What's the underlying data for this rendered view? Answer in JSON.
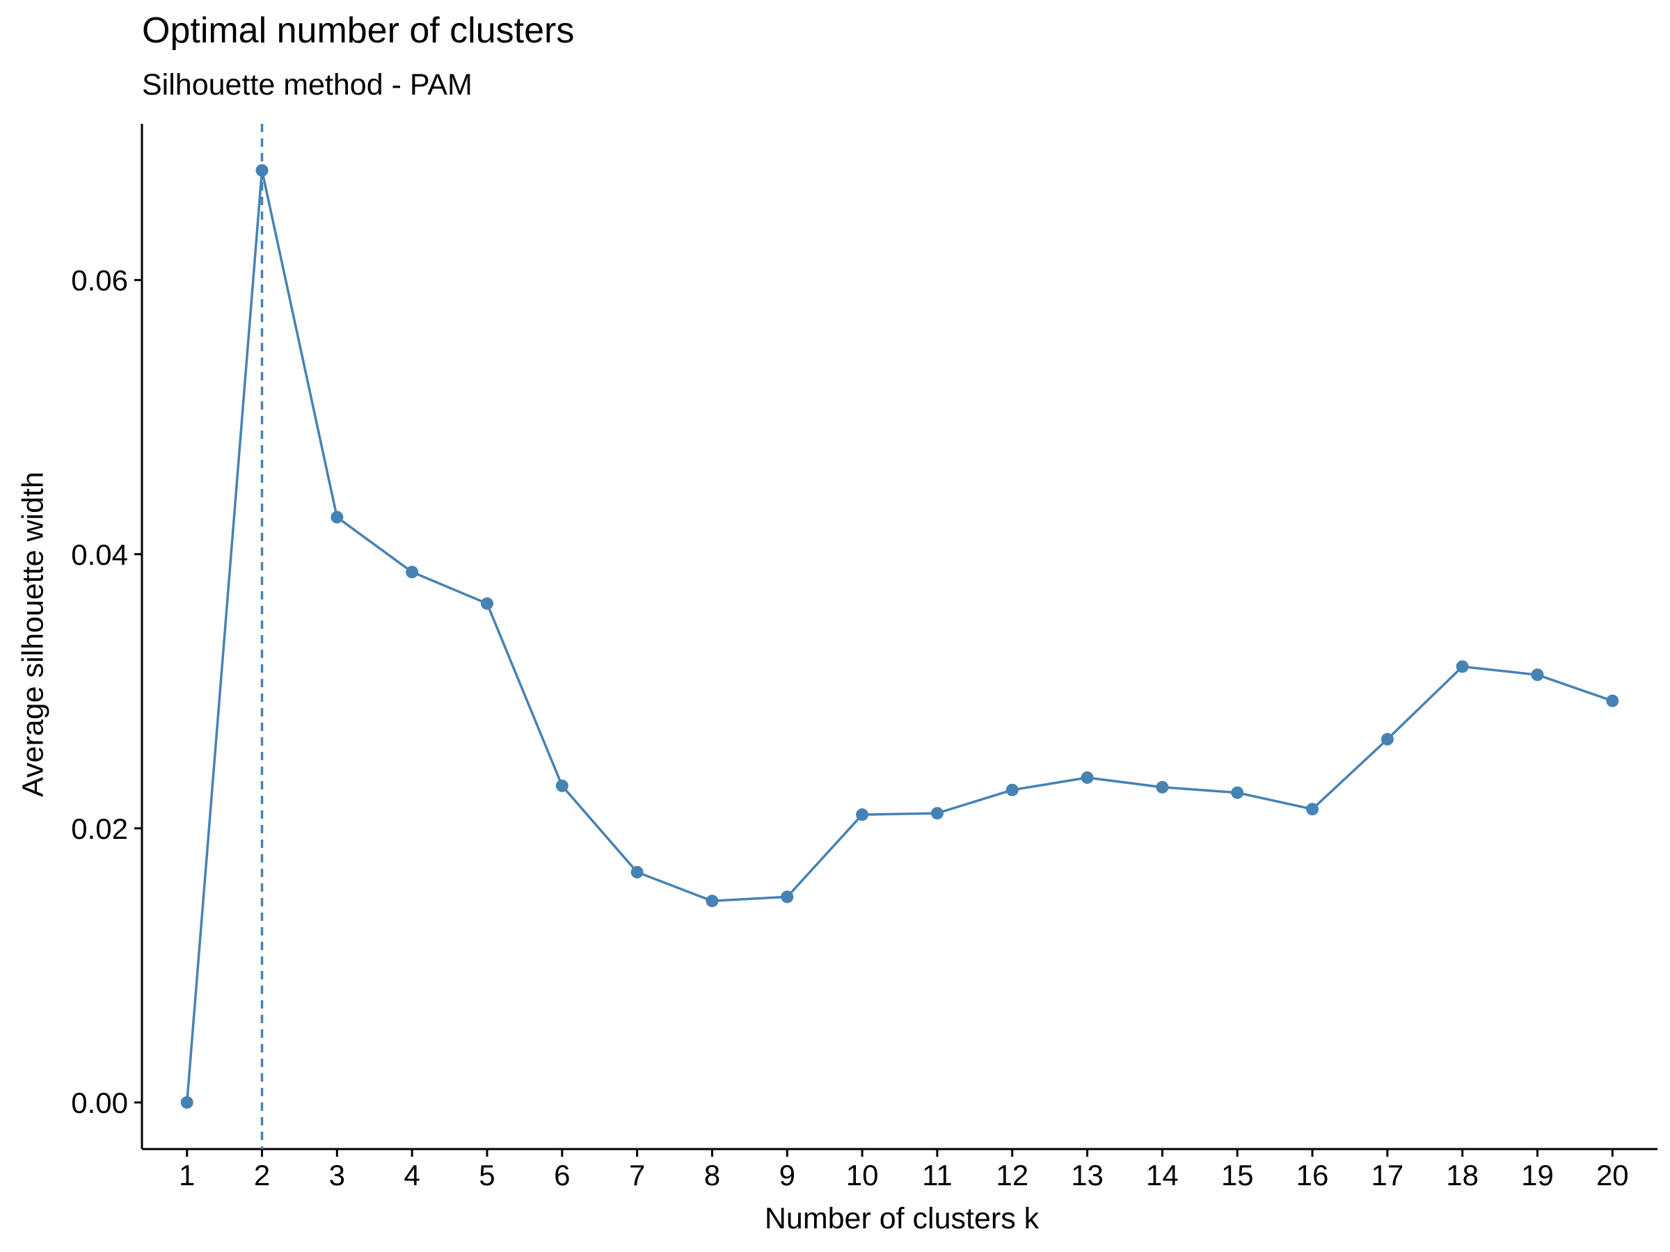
{
  "chart_data": {
    "type": "line",
    "title": "Optimal number of clusters",
    "subtitle": "Silhouette method - PAM",
    "xlabel": "Number of clusters k",
    "ylabel": "Average silhouette width",
    "x": [
      1,
      2,
      3,
      4,
      5,
      6,
      7,
      8,
      9,
      10,
      11,
      12,
      13,
      14,
      15,
      16,
      17,
      18,
      19,
      20
    ],
    "series": [
      {
        "values": [
          0.0,
          0.068,
          0.0427,
          0.0387,
          0.0364,
          0.0231,
          0.0168,
          0.0147,
          0.015,
          0.021,
          0.0211,
          0.0228,
          0.0237,
          0.023,
          0.0226,
          0.0214,
          0.0265,
          0.0318,
          0.0312,
          0.0293
        ]
      }
    ],
    "vline": {
      "x": 2,
      "style": "dashed"
    },
    "x_ticks": [
      "1",
      "2",
      "3",
      "4",
      "5",
      "6",
      "7",
      "8",
      "9",
      "10",
      "11",
      "12",
      "13",
      "14",
      "15",
      "16",
      "17",
      "18",
      "19",
      "20"
    ],
    "y_ticks": [
      {
        "value": 0.0,
        "label": "0.00"
      },
      {
        "value": 0.02,
        "label": "0.02"
      },
      {
        "value": 0.04,
        "label": "0.04"
      },
      {
        "value": 0.06,
        "label": "0.06"
      }
    ],
    "xlim": [
      0.4,
      20.6
    ],
    "ylim": [
      -0.0034,
      0.0714
    ],
    "grid": false,
    "legend": "none",
    "colors": {
      "line": "#4682B4",
      "point": "#4682B4",
      "vline": "#4682B4",
      "axis": "#000000",
      "text": "#000000",
      "background": "#FFFFFF"
    }
  }
}
